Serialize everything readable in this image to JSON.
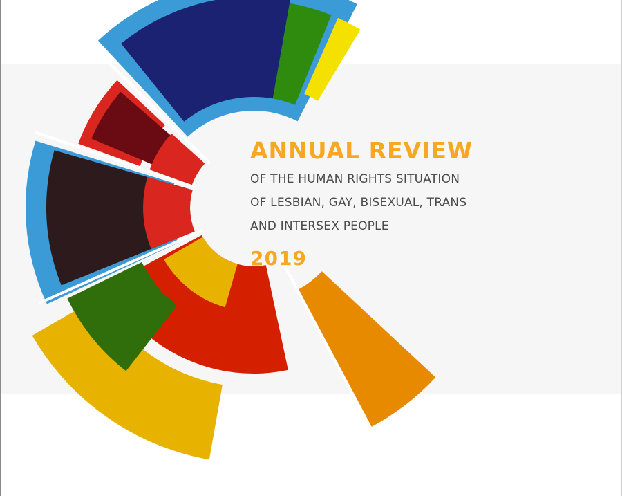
{
  "cover": {
    "title": "ANNUAL REVIEW",
    "subtitle_lines": [
      "OF THE HUMAN RIGHTS SITUATION",
      "OF LESBIAN, GAY, BISEXUAL, TRANS",
      "AND INTERSEX PEOPLE"
    ],
    "year": "2019"
  },
  "colors": {
    "accent_orange": "#f7a823",
    "text_gray": "#4a4a4a",
    "band": "#f6f6f6"
  },
  "logo": {
    "name": "segmented-circle-logo",
    "segment_colors": [
      "#3a9bd7",
      "#1b2272",
      "#2e8b0e",
      "#f5e100",
      "#d9261e",
      "#6a0b14",
      "#2d1a1c",
      "#e8b200",
      "#d42000",
      "#2f6e0a",
      "#e88a00"
    ]
  }
}
